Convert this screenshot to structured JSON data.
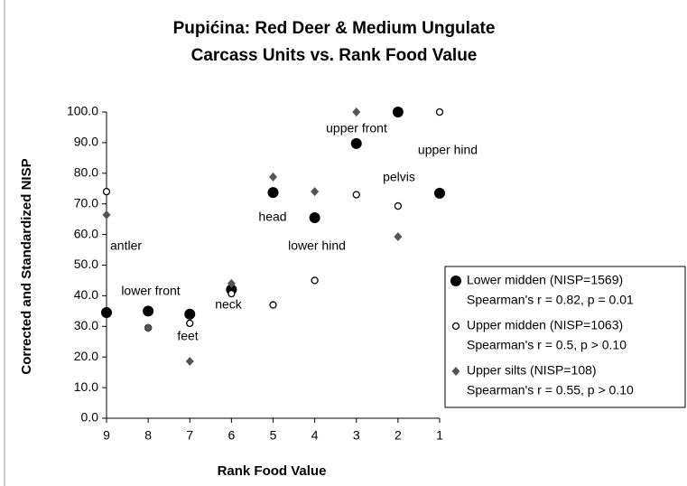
{
  "chart_data": {
    "type": "scatter",
    "title": [
      "Pupićina: Red Deer & Medium Ungulate",
      "Carcass Units vs. Rank Food Value"
    ],
    "x_label": "Rank Food Value",
    "y_label": "Corrected and Standardized NISP",
    "x": [
      9,
      8,
      7,
      6,
      5,
      4,
      3,
      2,
      1
    ],
    "xlim": [
      9,
      1
    ],
    "xticks": [
      9,
      8,
      7,
      6,
      5,
      4,
      3,
      2,
      1
    ],
    "ylim": [
      0,
      100
    ],
    "yticks": [
      {
        "value": 0,
        "label": "0.0"
      },
      {
        "value": 10,
        "label": "10.0"
      },
      {
        "value": 20,
        "label": "20.0"
      },
      {
        "value": 30,
        "label": "30.0"
      },
      {
        "value": 40,
        "label": "40.0"
      },
      {
        "value": 50,
        "label": "50.0"
      },
      {
        "value": 60,
        "label": "60.0"
      },
      {
        "value": 70,
        "label": "70.0"
      },
      {
        "value": 80,
        "label": "80.0"
      },
      {
        "value": 90,
        "label": "90.0"
      },
      {
        "value": 100,
        "label": "100.0"
      }
    ],
    "series": [
      {
        "name": "Lower midden (NISP=1569)",
        "stat": "Spearman's r = 0.82, p = 0.01",
        "marker": "circle",
        "color": "#000000",
        "values": [
          34.5,
          35,
          34,
          42,
          73.7,
          65.5,
          89.7,
          100,
          73.5
        ]
      },
      {
        "name": "Upper midden (NISP=1063)",
        "stat": "Spearman's r = 0.5, p > 0.10",
        "marker": "open-circle",
        "color": "#000000",
        "values": [
          74,
          29.5,
          31,
          40.7,
          37,
          45,
          73,
          69.3,
          100
        ]
      },
      {
        "name": "Upper silts (NISP=108)",
        "stat": "Spearman's r = 0.55, p > 0.10",
        "marker": "diamond",
        "color": "#555555",
        "values": [
          66.4,
          29.5,
          18.6,
          44,
          78.8,
          74,
          100,
          59.3,
          null
        ]
      }
    ],
    "annotations": [
      "antler",
      "lower front",
      "feet",
      "neck",
      "head",
      "lower hind",
      "upper front",
      "pelvis",
      "upper hind"
    ]
  }
}
